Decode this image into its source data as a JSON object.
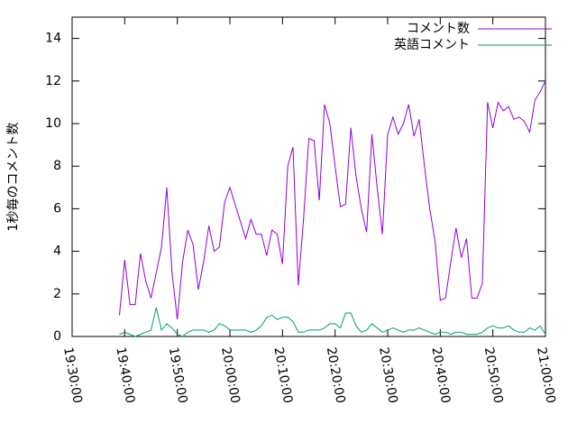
{
  "chart_data": {
    "type": "line",
    "ylabel": "1秒毎のコメント数",
    "x": [
      "19:39:00",
      "19:40:00",
      "19:41:00",
      "19:42:00",
      "19:43:00",
      "19:44:00",
      "19:45:00",
      "19:46:00",
      "19:47:00",
      "19:48:00",
      "19:49:00",
      "19:50:00",
      "19:51:00",
      "19:52:00",
      "19:53:00",
      "19:54:00",
      "19:55:00",
      "19:56:00",
      "19:57:00",
      "19:58:00",
      "19:59:00",
      "20:00:00",
      "20:01:00",
      "20:02:00",
      "20:03:00",
      "20:04:00",
      "20:05:00",
      "20:06:00",
      "20:07:00",
      "20:08:00",
      "20:09:00",
      "20:10:00",
      "20:11:00",
      "20:12:00",
      "20:13:00",
      "20:14:00",
      "20:15:00",
      "20:16:00",
      "20:17:00",
      "20:18:00",
      "20:19:00",
      "20:20:00",
      "20:21:00",
      "20:22:00",
      "20:23:00",
      "20:24:00",
      "20:25:00",
      "20:26:00",
      "20:27:00",
      "20:28:00",
      "20:29:00",
      "20:30:00",
      "20:31:00",
      "20:32:00",
      "20:33:00",
      "20:34:00",
      "20:35:00",
      "20:36:00",
      "20:37:00",
      "20:38:00",
      "20:39:00",
      "20:40:00",
      "20:41:00",
      "20:42:00",
      "20:43:00",
      "20:44:00",
      "20:45:00",
      "20:46:00",
      "20:47:00",
      "20:48:00",
      "20:49:00",
      "20:50:00",
      "20:51:00",
      "20:52:00",
      "20:53:00",
      "20:54:00",
      "20:55:00",
      "20:56:00",
      "20:57:00",
      "20:58:00",
      "20:59:00",
      "21:00:00"
    ],
    "series": [
      {
        "name": "コメント数",
        "color": "#9400d3",
        "values": [
          1.0,
          3.6,
          1.5,
          1.5,
          3.9,
          2.6,
          1.8,
          3.0,
          4.2,
          7.0,
          3.0,
          0.8,
          3.5,
          5.0,
          4.3,
          2.2,
          3.5,
          5.2,
          4.0,
          4.2,
          6.3,
          7.0,
          6.2,
          5.4,
          4.6,
          5.5,
          4.8,
          4.8,
          3.8,
          5.0,
          4.8,
          3.4,
          8.0,
          8.9,
          2.4,
          5.5,
          9.3,
          9.2,
          6.4,
          10.9,
          10.0,
          8.0,
          6.1,
          6.2,
          9.8,
          7.5,
          6.0,
          4.9,
          9.5,
          7.0,
          4.8,
          9.5,
          10.3,
          9.5,
          10.0,
          10.9,
          9.4,
          10.2,
          8.0,
          6.0,
          4.5,
          1.7,
          1.8,
          3.5,
          5.1,
          3.7,
          4.6,
          1.8,
          1.8,
          2.5,
          11.0,
          9.8,
          11.0,
          10.6,
          10.8,
          10.2,
          10.3,
          10.1,
          9.6,
          11.1,
          11.5,
          12.0
        ]
      },
      {
        "name": "英語コメント",
        "color": "#009e73",
        "values": [
          0.1,
          0.2,
          0.1,
          0.0,
          0.1,
          0.2,
          0.3,
          1.35,
          0.3,
          0.6,
          0.4,
          0.1,
          0.0,
          0.2,
          0.3,
          0.3,
          0.3,
          0.2,
          0.3,
          0.6,
          0.5,
          0.3,
          0.3,
          0.3,
          0.3,
          0.2,
          0.3,
          0.5,
          0.9,
          1.0,
          0.8,
          0.9,
          0.9,
          0.7,
          0.2,
          0.2,
          0.3,
          0.3,
          0.3,
          0.4,
          0.6,
          0.6,
          0.4,
          1.1,
          1.1,
          0.5,
          0.2,
          0.3,
          0.6,
          0.4,
          0.2,
          0.3,
          0.4,
          0.3,
          0.2,
          0.3,
          0.3,
          0.4,
          0.3,
          0.2,
          0.1,
          0.2,
          0.2,
          0.1,
          0.2,
          0.2,
          0.1,
          0.1,
          0.1,
          0.2,
          0.4,
          0.5,
          0.4,
          0.4,
          0.5,
          0.3,
          0.2,
          0.2,
          0.4,
          0.3,
          0.5,
          0.1
        ]
      }
    ],
    "xlim": [
      "19:30:00",
      "21:00:00"
    ],
    "xticks": [
      "19:30:00",
      "19:40:00",
      "19:50:00",
      "20:00:00",
      "20:10:00",
      "20:20:00",
      "20:30:00",
      "20:40:00",
      "20:50:00",
      "21:00:00"
    ],
    "ylim": [
      0,
      15
    ],
    "yticks": [
      0,
      2,
      4,
      6,
      8,
      10,
      12,
      14
    ],
    "grid": false,
    "legend": "top-right"
  }
}
